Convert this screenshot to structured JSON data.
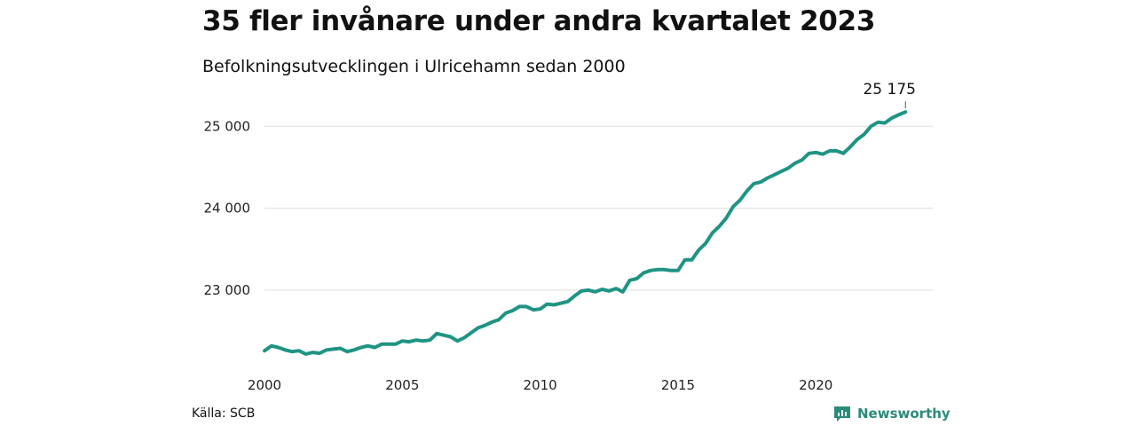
{
  "header": {
    "title": "35 fler invånare under andra kvartalet 2023",
    "subtitle": "Befolkningsutvecklingen i Ulricehamn sedan 2000"
  },
  "footer": {
    "source": "Källa: SCB",
    "brand": "Newsworthy"
  },
  "colors": {
    "line": "#1f9484",
    "grid": "#dddddd",
    "brand": "#2b8a7a"
  },
  "chart_data": {
    "type": "line",
    "title": "35 fler invånare under andra kvartalet 2023",
    "subtitle": "Befolkningsutvecklingen i Ulricehamn sedan 2000",
    "xlim": [
      2000,
      2023.5
    ],
    "ylim": [
      22100,
      25350
    ],
    "x_ticks": [
      {
        "value": 2000,
        "label": "2000"
      },
      {
        "value": 2005,
        "label": "2005"
      },
      {
        "value": 2010,
        "label": "2010"
      },
      {
        "value": 2015,
        "label": "2015"
      },
      {
        "value": 2020,
        "label": "2020"
      }
    ],
    "y_ticks": [
      {
        "value": 23000,
        "label": "23 000"
      },
      {
        "value": 24000,
        "label": "24 000"
      },
      {
        "value": 25000,
        "label": "25 000"
      }
    ],
    "grid": true,
    "last_label": "25 175",
    "series": [
      {
        "x": [
          2000.0,
          2000.25,
          2000.5,
          2000.75,
          2001.0,
          2001.25,
          2001.5,
          2001.75,
          2002.0,
          2002.25,
          2002.5,
          2002.75,
          2003.0,
          2003.25,
          2003.5,
          2003.75,
          2004.0,
          2004.25,
          2004.5,
          2004.75,
          2005.0,
          2005.25,
          2005.5,
          2005.75,
          2006.0,
          2006.25,
          2006.5,
          2006.75,
          2007.0,
          2007.25,
          2007.5,
          2007.75,
          2008.0,
          2008.25,
          2008.5,
          2008.75,
          2009.0,
          2009.25,
          2009.5,
          2009.75,
          2010.0,
          2010.25,
          2010.5,
          2010.75,
          2011.0,
          2011.25,
          2011.5,
          2011.75,
          2012.0,
          2012.25,
          2012.5,
          2012.75,
          2013.0,
          2013.25,
          2013.5,
          2013.75,
          2014.0,
          2014.25,
          2014.5,
          2014.75,
          2015.0,
          2015.25,
          2015.5,
          2015.75,
          2016.0,
          2016.25,
          2016.5,
          2016.75,
          2017.0,
          2017.25,
          2017.5,
          2017.75,
          2018.0,
          2018.25,
          2018.5,
          2018.75,
          2019.0,
          2019.25,
          2019.5,
          2019.75,
          2020.0,
          2020.25,
          2020.5,
          2020.75,
          2021.0,
          2021.25,
          2021.5,
          2021.75,
          2022.0,
          2022.25,
          2022.5,
          2022.75,
          2023.0,
          2023.25
        ],
        "values": [
          22260,
          22320,
          22300,
          22270,
          22250,
          22260,
          22220,
          22240,
          22230,
          22270,
          22280,
          22290,
          22250,
          22270,
          22300,
          22320,
          22300,
          22340,
          22340,
          22340,
          22380,
          22370,
          22390,
          22380,
          22390,
          22470,
          22450,
          22430,
          22380,
          22420,
          22480,
          22540,
          22570,
          22610,
          22640,
          22720,
          22750,
          22800,
          22800,
          22760,
          22770,
          22830,
          22820,
          22840,
          22860,
          22930,
          22990,
          23000,
          22980,
          23010,
          22990,
          23020,
          22980,
          23120,
          23140,
          23210,
          23240,
          23250,
          23250,
          23240,
          23240,
          23370,
          23370,
          23490,
          23570,
          23700,
          23780,
          23880,
          24020,
          24100,
          24210,
          24300,
          24320,
          24370,
          24410,
          24450,
          24490,
          24550,
          24590,
          24670,
          24680,
          24660,
          24700,
          24700,
          24670,
          24750,
          24840,
          24900,
          25000,
          25050,
          25040,
          25100,
          25140,
          25175
        ]
      }
    ]
  }
}
